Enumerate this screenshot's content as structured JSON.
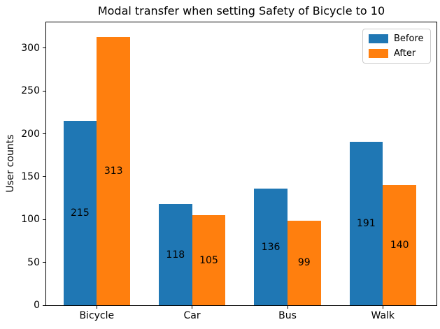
{
  "figure": {
    "title": "Modal transfer when setting Safety of Bicycle to 10",
    "ylabel": "User counts"
  },
  "chart_data": {
    "type": "bar",
    "title": "Modal transfer when setting Safety of Bicycle to 10",
    "xlabel": "",
    "ylabel": "User counts",
    "categories": [
      "Bicycle",
      "Car",
      "Bus",
      "Walk"
    ],
    "series": [
      {
        "name": "Before",
        "color": "#1f77b4",
        "values": [
          215,
          118,
          136,
          191
        ]
      },
      {
        "name": "After",
        "color": "#ff7f0e",
        "values": [
          313,
          105,
          99,
          140
        ]
      }
    ],
    "bar_value_labels": {
      "Before": [
        215,
        118,
        136,
        191
      ],
      "After": [
        313,
        105,
        99,
        140
      ]
    },
    "ylim": [
      0,
      330
    ],
    "yticks": [
      0,
      50,
      100,
      150,
      200,
      250,
      300
    ],
    "legend": {
      "position": "upper right",
      "labels": [
        "Before",
        "After"
      ]
    },
    "grid": false,
    "colors": {
      "before": "#1f77b4",
      "after": "#ff7f0e",
      "axis": "#000000",
      "text": "#000000",
      "legend_border": "#cccccc",
      "background": "#ffffff"
    }
  }
}
